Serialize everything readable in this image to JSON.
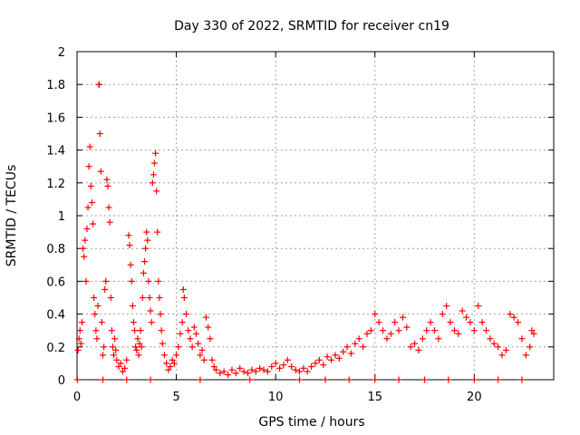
{
  "chart_data": {
    "type": "scatter",
    "title": "Day 330 of 2022, SRMTID for receiver cn19",
    "xlabel": "GPS time / hours",
    "ylabel": "SRMTID / TECUs",
    "xlim": [
      0,
      24
    ],
    "ylim": [
      0,
      2
    ],
    "xticks": [
      0,
      5,
      10,
      15,
      20
    ],
    "yticks": [
      0,
      0.2,
      0.4,
      0.6,
      0.8,
      1,
      1.2,
      1.4,
      1.6,
      1.8,
      2
    ],
    "xtick_labels": [
      "0",
      "5",
      "10",
      "15",
      "20"
    ],
    "ytick_labels": [
      "0",
      "0.2",
      "0.4",
      "0.6",
      "0.8",
      "1",
      "1.2",
      "1.4",
      "1.6",
      "1.8",
      "2"
    ],
    "grid": true,
    "marker": "+",
    "color": "#ff0000",
    "series": [
      {
        "name": "SRMTID",
        "points": [
          [
            0.05,
            0.18
          ],
          [
            0.1,
            0.25
          ],
          [
            0.15,
            0.3
          ],
          [
            0.2,
            0.22
          ],
          [
            0.25,
            0.35
          ],
          [
            0.3,
            0.8
          ],
          [
            0.35,
            0.75
          ],
          [
            0.4,
            0.85
          ],
          [
            0.45,
            0.6
          ],
          [
            0.5,
            0.92
          ],
          [
            0.55,
            1.05
          ],
          [
            0.6,
            1.3
          ],
          [
            0.65,
            1.42
          ],
          [
            0.7,
            1.18
          ],
          [
            0.75,
            1.08
          ],
          [
            0.8,
            0.95
          ],
          [
            0.85,
            0.5
          ],
          [
            0.9,
            0.4
          ],
          [
            0.95,
            0.3
          ],
          [
            1.0,
            0.25
          ],
          [
            1.05,
            0.45
          ],
          [
            1.1,
            1.8
          ],
          [
            1.12,
            1.8
          ],
          [
            1.15,
            1.5
          ],
          [
            1.2,
            1.27
          ],
          [
            1.25,
            0.35
          ],
          [
            1.3,
            0.15
          ],
          [
            1.35,
            0.2
          ],
          [
            1.4,
            0.55
          ],
          [
            1.45,
            0.6
          ],
          [
            1.5,
            1.22
          ],
          [
            1.55,
            1.18
          ],
          [
            1.6,
            1.05
          ],
          [
            1.65,
            0.96
          ],
          [
            1.7,
            0.5
          ],
          [
            1.75,
            0.3
          ],
          [
            1.8,
            0.2
          ],
          [
            1.85,
            0.15
          ],
          [
            1.9,
            0.25
          ],
          [
            1.95,
            0.18
          ],
          [
            2.0,
            0.12
          ],
          [
            2.1,
            0.08
          ],
          [
            2.2,
            0.1
          ],
          [
            2.3,
            0.05
          ],
          [
            2.4,
            0.07
          ],
          [
            2.5,
            0.12
          ],
          [
            2.6,
            0.88
          ],
          [
            2.65,
            0.82
          ],
          [
            2.7,
            0.7
          ],
          [
            2.75,
            0.6
          ],
          [
            2.8,
            0.45
          ],
          [
            2.85,
            0.35
          ],
          [
            2.9,
            0.3
          ],
          [
            2.95,
            0.2
          ],
          [
            3.0,
            0.18
          ],
          [
            3.05,
            0.25
          ],
          [
            3.1,
            0.15
          ],
          [
            3.15,
            0.22
          ],
          [
            3.2,
            0.3
          ],
          [
            3.25,
            0.2
          ],
          [
            3.3,
            0.5
          ],
          [
            3.35,
            0.65
          ],
          [
            3.4,
            0.72
          ],
          [
            3.45,
            0.8
          ],
          [
            3.5,
            0.9
          ],
          [
            3.55,
            0.85
          ],
          [
            3.6,
            0.6
          ],
          [
            3.65,
            0.5
          ],
          [
            3.7,
            0.42
          ],
          [
            3.75,
            0.35
          ],
          [
            3.8,
            1.2
          ],
          [
            3.85,
            1.25
          ],
          [
            3.9,
            1.32
          ],
          [
            3.95,
            1.38
          ],
          [
            4.0,
            1.15
          ],
          [
            4.05,
            0.9
          ],
          [
            4.1,
            0.6
          ],
          [
            4.15,
            0.5
          ],
          [
            4.2,
            0.4
          ],
          [
            4.25,
            0.3
          ],
          [
            4.3,
            0.22
          ],
          [
            4.4,
            0.15
          ],
          [
            4.5,
            0.1
          ],
          [
            4.6,
            0.06
          ],
          [
            4.7,
            0.08
          ],
          [
            4.8,
            0.12
          ],
          [
            4.9,
            0.1
          ],
          [
            5.0,
            0.15
          ],
          [
            5.1,
            0.2
          ],
          [
            5.2,
            0.28
          ],
          [
            5.3,
            0.35
          ],
          [
            5.35,
            0.55
          ],
          [
            5.4,
            0.5
          ],
          [
            5.5,
            0.4
          ],
          [
            5.6,
            0.3
          ],
          [
            5.7,
            0.25
          ],
          [
            5.8,
            0.2
          ],
          [
            5.9,
            0.32
          ],
          [
            6.0,
            0.28
          ],
          [
            6.1,
            0.22
          ],
          [
            6.2,
            0.15
          ],
          [
            6.3,
            0.18
          ],
          [
            6.4,
            0.12
          ],
          [
            6.5,
            0.38
          ],
          [
            6.6,
            0.32
          ],
          [
            6.7,
            0.25
          ],
          [
            6.8,
            0.12
          ],
          [
            6.9,
            0.08
          ],
          [
            7.0,
            0.06
          ],
          [
            7.2,
            0.04
          ],
          [
            7.4,
            0.05
          ],
          [
            7.6,
            0.03
          ],
          [
            7.8,
            0.06
          ],
          [
            8.0,
            0.04
          ],
          [
            8.2,
            0.07
          ],
          [
            8.4,
            0.05
          ],
          [
            8.6,
            0.04
          ],
          [
            8.8,
            0.06
          ],
          [
            9.0,
            0.05
          ],
          [
            9.2,
            0.07
          ],
          [
            9.4,
            0.06
          ],
          [
            9.6,
            0.05
          ],
          [
            9.8,
            0.08
          ],
          [
            10.0,
            0.1
          ],
          [
            10.2,
            0.07
          ],
          [
            10.4,
            0.09
          ],
          [
            10.6,
            0.12
          ],
          [
            10.8,
            0.08
          ],
          [
            11.0,
            0.06
          ],
          [
            11.2,
            0.05
          ],
          [
            11.4,
            0.07
          ],
          [
            11.6,
            0.05
          ],
          [
            11.8,
            0.08
          ],
          [
            12.0,
            0.1
          ],
          [
            12.2,
            0.12
          ],
          [
            12.4,
            0.09
          ],
          [
            12.6,
            0.14
          ],
          [
            12.8,
            0.12
          ],
          [
            13.0,
            0.15
          ],
          [
            13.2,
            0.13
          ],
          [
            13.4,
            0.17
          ],
          [
            13.6,
            0.2
          ],
          [
            13.8,
            0.16
          ],
          [
            14.0,
            0.22
          ],
          [
            14.2,
            0.25
          ],
          [
            14.4,
            0.2
          ],
          [
            14.6,
            0.28
          ],
          [
            14.8,
            0.3
          ],
          [
            15.0,
            0.4
          ],
          [
            15.2,
            0.35
          ],
          [
            15.4,
            0.3
          ],
          [
            15.6,
            0.25
          ],
          [
            15.8,
            0.28
          ],
          [
            16.0,
            0.35
          ],
          [
            16.2,
            0.3
          ],
          [
            16.4,
            0.38
          ],
          [
            16.6,
            0.32
          ],
          [
            16.8,
            0.2
          ],
          [
            17.0,
            0.22
          ],
          [
            17.2,
            0.18
          ],
          [
            17.4,
            0.25
          ],
          [
            17.6,
            0.3
          ],
          [
            17.8,
            0.35
          ],
          [
            18.0,
            0.3
          ],
          [
            18.2,
            0.25
          ],
          [
            18.4,
            0.4
          ],
          [
            18.6,
            0.45
          ],
          [
            18.8,
            0.35
          ],
          [
            19.0,
            0.3
          ],
          [
            19.2,
            0.28
          ],
          [
            19.4,
            0.42
          ],
          [
            19.6,
            0.38
          ],
          [
            19.8,
            0.35
          ],
          [
            20.0,
            0.3
          ],
          [
            20.2,
            0.45
          ],
          [
            20.4,
            0.35
          ],
          [
            20.6,
            0.3
          ],
          [
            20.8,
            0.25
          ],
          [
            21.0,
            0.22
          ],
          [
            21.2,
            0.2
          ],
          [
            21.4,
            0.15
          ],
          [
            21.6,
            0.18
          ],
          [
            21.8,
            0.4
          ],
          [
            22.0,
            0.38
          ],
          [
            22.2,
            0.35
          ],
          [
            22.4,
            0.25
          ],
          [
            22.6,
            0.15
          ],
          [
            22.8,
            0.2
          ],
          [
            22.9,
            0.3
          ],
          [
            23.0,
            0.28
          ],
          [
            0.02,
            0.0
          ],
          [
            1.3,
            0.0
          ],
          [
            2.5,
            0.0
          ],
          [
            3.7,
            0.0
          ],
          [
            6.2,
            0.0
          ],
          [
            8.7,
            0.0
          ],
          [
            11.2,
            0.0
          ],
          [
            12.5,
            0.0
          ],
          [
            13.7,
            0.0
          ],
          [
            15.0,
            0.0
          ],
          [
            16.2,
            0.0
          ],
          [
            17.5,
            0.0
          ],
          [
            18.7,
            0.0
          ],
          [
            20.0,
            0.0
          ],
          [
            21.2,
            0.0
          ],
          [
            22.4,
            0.0
          ]
        ]
      }
    ]
  }
}
